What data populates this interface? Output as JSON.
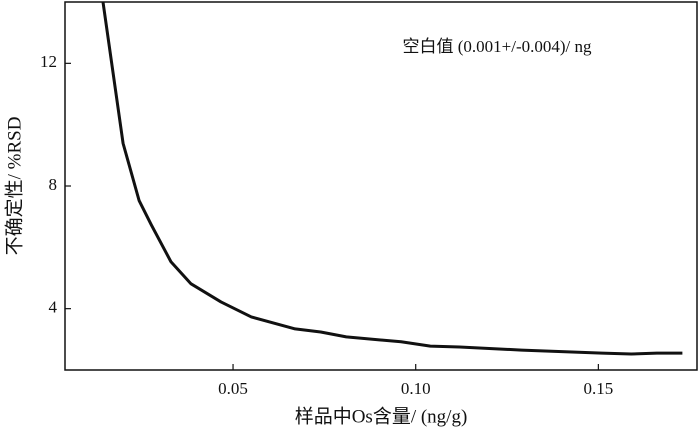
{
  "chart_data": {
    "type": "line",
    "x_label": "样品中Os含量/ (ng/g)",
    "y_label": "不确定性/ %RSD",
    "annotation": "空白值 (0.001+/-0.004)/ ng",
    "x": [
      0.0144,
      0.0199,
      0.0243,
      0.0276,
      0.033,
      0.0385,
      0.0467,
      0.055,
      0.067,
      0.074,
      0.081,
      0.096,
      0.104,
      0.112,
      0.129,
      0.151,
      0.159,
      0.166,
      0.173
    ],
    "series": [
      {
        "color": "#111111",
        "values": [
          14,
          9.39,
          7.52,
          6.74,
          5.53,
          4.81,
          4.22,
          3.73,
          3.34,
          3.24,
          3.08,
          2.92,
          2.78,
          2.75,
          2.65,
          2.55,
          2.52,
          2.55,
          2.55
        ]
      }
    ],
    "xlim": [
      0.004,
      0.177
    ],
    "ylim": [
      2,
      14
    ],
    "xticks": [
      0.05,
      {
        "value": 0.1,
        "label": "0.10"
      },
      0.15
    ],
    "yticks": [
      4,
      8,
      12
    ],
    "grid": false
  }
}
